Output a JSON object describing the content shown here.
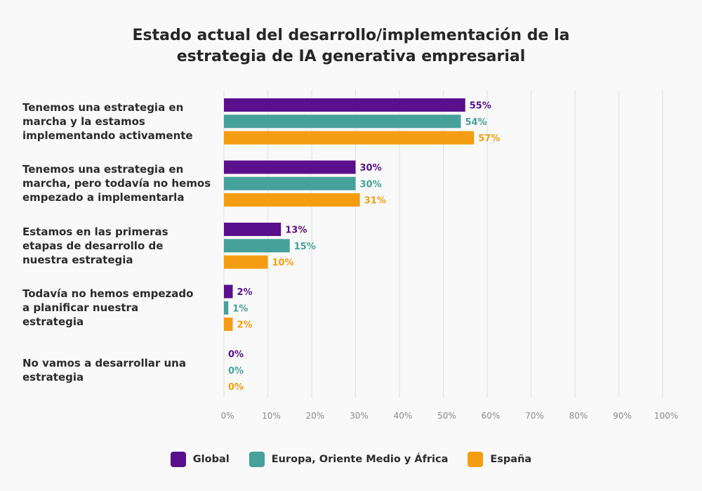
{
  "chart_data": {
    "type": "bar",
    "orientation": "horizontal",
    "title": "Estado actual del desarrollo/implementación de la estrategia de IA generativa empresarial",
    "title_lines": [
      "Estado actual del desarrollo/implementación de la",
      "estrategia de IA generativa empresarial"
    ],
    "categories": [
      [
        "Tenemos una estrategia en",
        "marcha y la estamos",
        "implementando activamente"
      ],
      [
        "Tenemos una estrategia en",
        "marcha, pero todavía no hemos",
        "empezado a implementarla"
      ],
      [
        "Estamos en las primeras",
        "etapas de desarrollo de",
        "nuestra estrategia"
      ],
      [
        "Todavía no hemos empezado",
        "a planificar nuestra",
        "estrategia"
      ],
      [
        "No vamos a desarrollar una",
        "estrategia"
      ]
    ],
    "series": [
      {
        "name": "Global",
        "color": "#5a0f8c",
        "values": [
          55,
          30,
          13,
          2,
          0
        ]
      },
      {
        "name": "Europa, Oriente Medio y África",
        "color": "#46a19a",
        "values": [
          54,
          30,
          15,
          1,
          0
        ]
      },
      {
        "name": "España",
        "color": "#f59d12",
        "values": [
          57,
          31,
          10,
          2,
          0
        ]
      }
    ],
    "xlim": [
      0,
      100
    ],
    "xticks": [
      0,
      10,
      20,
      30,
      40,
      50,
      60,
      70,
      80,
      90,
      100
    ],
    "tick_suffix": "%",
    "value_suffix": "%",
    "grid": true,
    "legend_position": "bottom",
    "xlabel": "",
    "ylabel": ""
  }
}
